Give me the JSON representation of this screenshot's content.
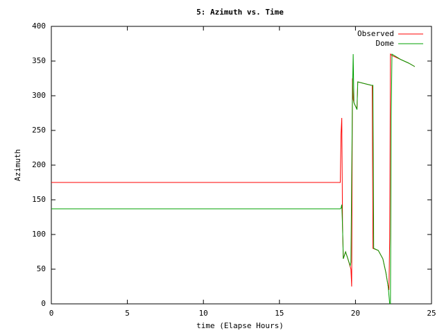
{
  "chart_data": {
    "type": "line",
    "title": "5: Azimuth vs. Time",
    "x_label": "time (Elapse Hours)",
    "y_label": "Azimuth",
    "xlim": [
      0,
      25
    ],
    "xticks": [
      0,
      5,
      10,
      15,
      20,
      25
    ],
    "ylim": [
      0,
      400
    ],
    "yticks": [
      0,
      50,
      100,
      150,
      200,
      250,
      300,
      350,
      400
    ],
    "legend": "top-right",
    "series": [
      {
        "name": "Observed",
        "color": "#ff0000",
        "x": [
          0,
          19.0,
          19.05,
          19.1,
          19.15,
          19.2,
          19.35,
          19.5,
          19.7,
          19.75,
          19.8,
          19.85,
          19.9,
          20.0,
          20.1,
          20.15,
          20.5,
          21.05,
          21.1,
          21.15,
          21.5,
          21.8,
          22.0,
          22.15,
          22.2,
          22.25,
          22.3,
          22.4,
          23.0,
          23.5,
          23.9
        ],
        "values": [
          175,
          175,
          245,
          268,
          110,
          65,
          75,
          65,
          50,
          25,
          325,
          295,
          290,
          285,
          282,
          320,
          318,
          315,
          315,
          80,
          77,
          65,
          45,
          25,
          20,
          95,
          360,
          358,
          352,
          347,
          342
        ]
      },
      {
        "name": "Dome",
        "color": "#00a000",
        "x": [
          0,
          19.0,
          19.05,
          19.1,
          19.15,
          19.2,
          19.35,
          19.5,
          19.65,
          19.7,
          19.8,
          19.85,
          19.9,
          20.0,
          20.1,
          20.15,
          20.5,
          21.05,
          21.15,
          21.2,
          21.5,
          21.8,
          22.0,
          22.15,
          22.25,
          22.3,
          22.35,
          22.4,
          23.0,
          23.5,
          23.9
        ],
        "values": [
          137,
          137,
          138,
          143,
          110,
          65,
          75,
          65,
          55,
          60,
          300,
          360,
          290,
          285,
          280,
          320,
          318,
          315,
          315,
          80,
          77,
          65,
          45,
          25,
          0,
          0,
          270,
          360,
          352,
          347,
          342
        ]
      }
    ]
  }
}
